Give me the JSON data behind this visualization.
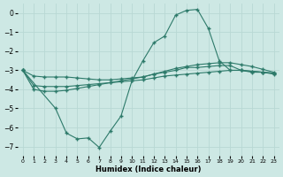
{
  "xlabel": "Humidex (Indice chaleur)",
  "background_color": "#cde8e4",
  "grid_color": "#b8d8d4",
  "line_color": "#2d7a6a",
  "xlim": [
    -0.5,
    23.5
  ],
  "ylim": [
    -7.5,
    0.5
  ],
  "xticks": [
    0,
    1,
    2,
    3,
    4,
    5,
    6,
    7,
    8,
    9,
    10,
    11,
    12,
    13,
    14,
    15,
    16,
    17,
    18,
    19,
    20,
    21,
    22,
    23
  ],
  "yticks": [
    0,
    -1,
    -2,
    -3,
    -4,
    -5,
    -6,
    -7
  ],
  "curve_main_x": [
    0,
    3,
    4,
    5,
    6,
    7,
    8,
    9,
    10,
    11,
    12,
    13,
    14,
    15,
    16,
    17,
    18,
    19,
    20,
    21,
    22,
    23
  ],
  "curve_main_y": [
    -3.0,
    -5.0,
    -6.3,
    -6.6,
    -6.55,
    -7.05,
    -6.2,
    -5.4,
    -3.55,
    -2.5,
    -1.55,
    -1.2,
    -0.1,
    0.15,
    0.2,
    -0.8,
    -2.5,
    -3.0,
    -3.0,
    -3.1,
    -3.1,
    -3.2
  ],
  "curve_upper_x": [
    0,
    1,
    2,
    3,
    4,
    5,
    6,
    7,
    8,
    9,
    10,
    11,
    12,
    13,
    14,
    15,
    16,
    17,
    18,
    19,
    20,
    21,
    22,
    23
  ],
  "curve_upper_y": [
    -3.0,
    -3.3,
    -3.35,
    -3.35,
    -3.35,
    -3.4,
    -3.45,
    -3.5,
    -3.5,
    -3.45,
    -3.4,
    -3.35,
    -3.2,
    -3.1,
    -3.0,
    -2.85,
    -2.85,
    -2.8,
    -2.75,
    -2.75,
    -3.0,
    -3.05,
    -3.1,
    -3.15
  ],
  "curve_mid_x": [
    0,
    1,
    2,
    3,
    4,
    5,
    6,
    7,
    8,
    9,
    10,
    11,
    12,
    13,
    14,
    15,
    16,
    17,
    18,
    19,
    20,
    21,
    22,
    23
  ],
  "curve_mid_y": [
    -3.0,
    -3.8,
    -3.85,
    -3.85,
    -3.85,
    -3.8,
    -3.75,
    -3.7,
    -3.65,
    -3.6,
    -3.55,
    -3.5,
    -3.4,
    -3.3,
    -3.25,
    -3.2,
    -3.15,
    -3.1,
    -3.05,
    -3.0,
    -3.0,
    -3.05,
    -3.1,
    -3.15
  ],
  "curve_lower_x": [
    0,
    1,
    2,
    3,
    4,
    5,
    6,
    7,
    8,
    9,
    10,
    11,
    12,
    13,
    14,
    15,
    16,
    17,
    18,
    19,
    20,
    21,
    22,
    23
  ],
  "curve_lower_y": [
    -3.0,
    -4.0,
    -4.1,
    -4.1,
    -4.05,
    -3.95,
    -3.85,
    -3.75,
    -3.65,
    -3.55,
    -3.45,
    -3.35,
    -3.2,
    -3.05,
    -2.9,
    -2.8,
    -2.7,
    -2.65,
    -2.6,
    -2.6,
    -2.7,
    -2.8,
    -2.95,
    -3.1
  ]
}
